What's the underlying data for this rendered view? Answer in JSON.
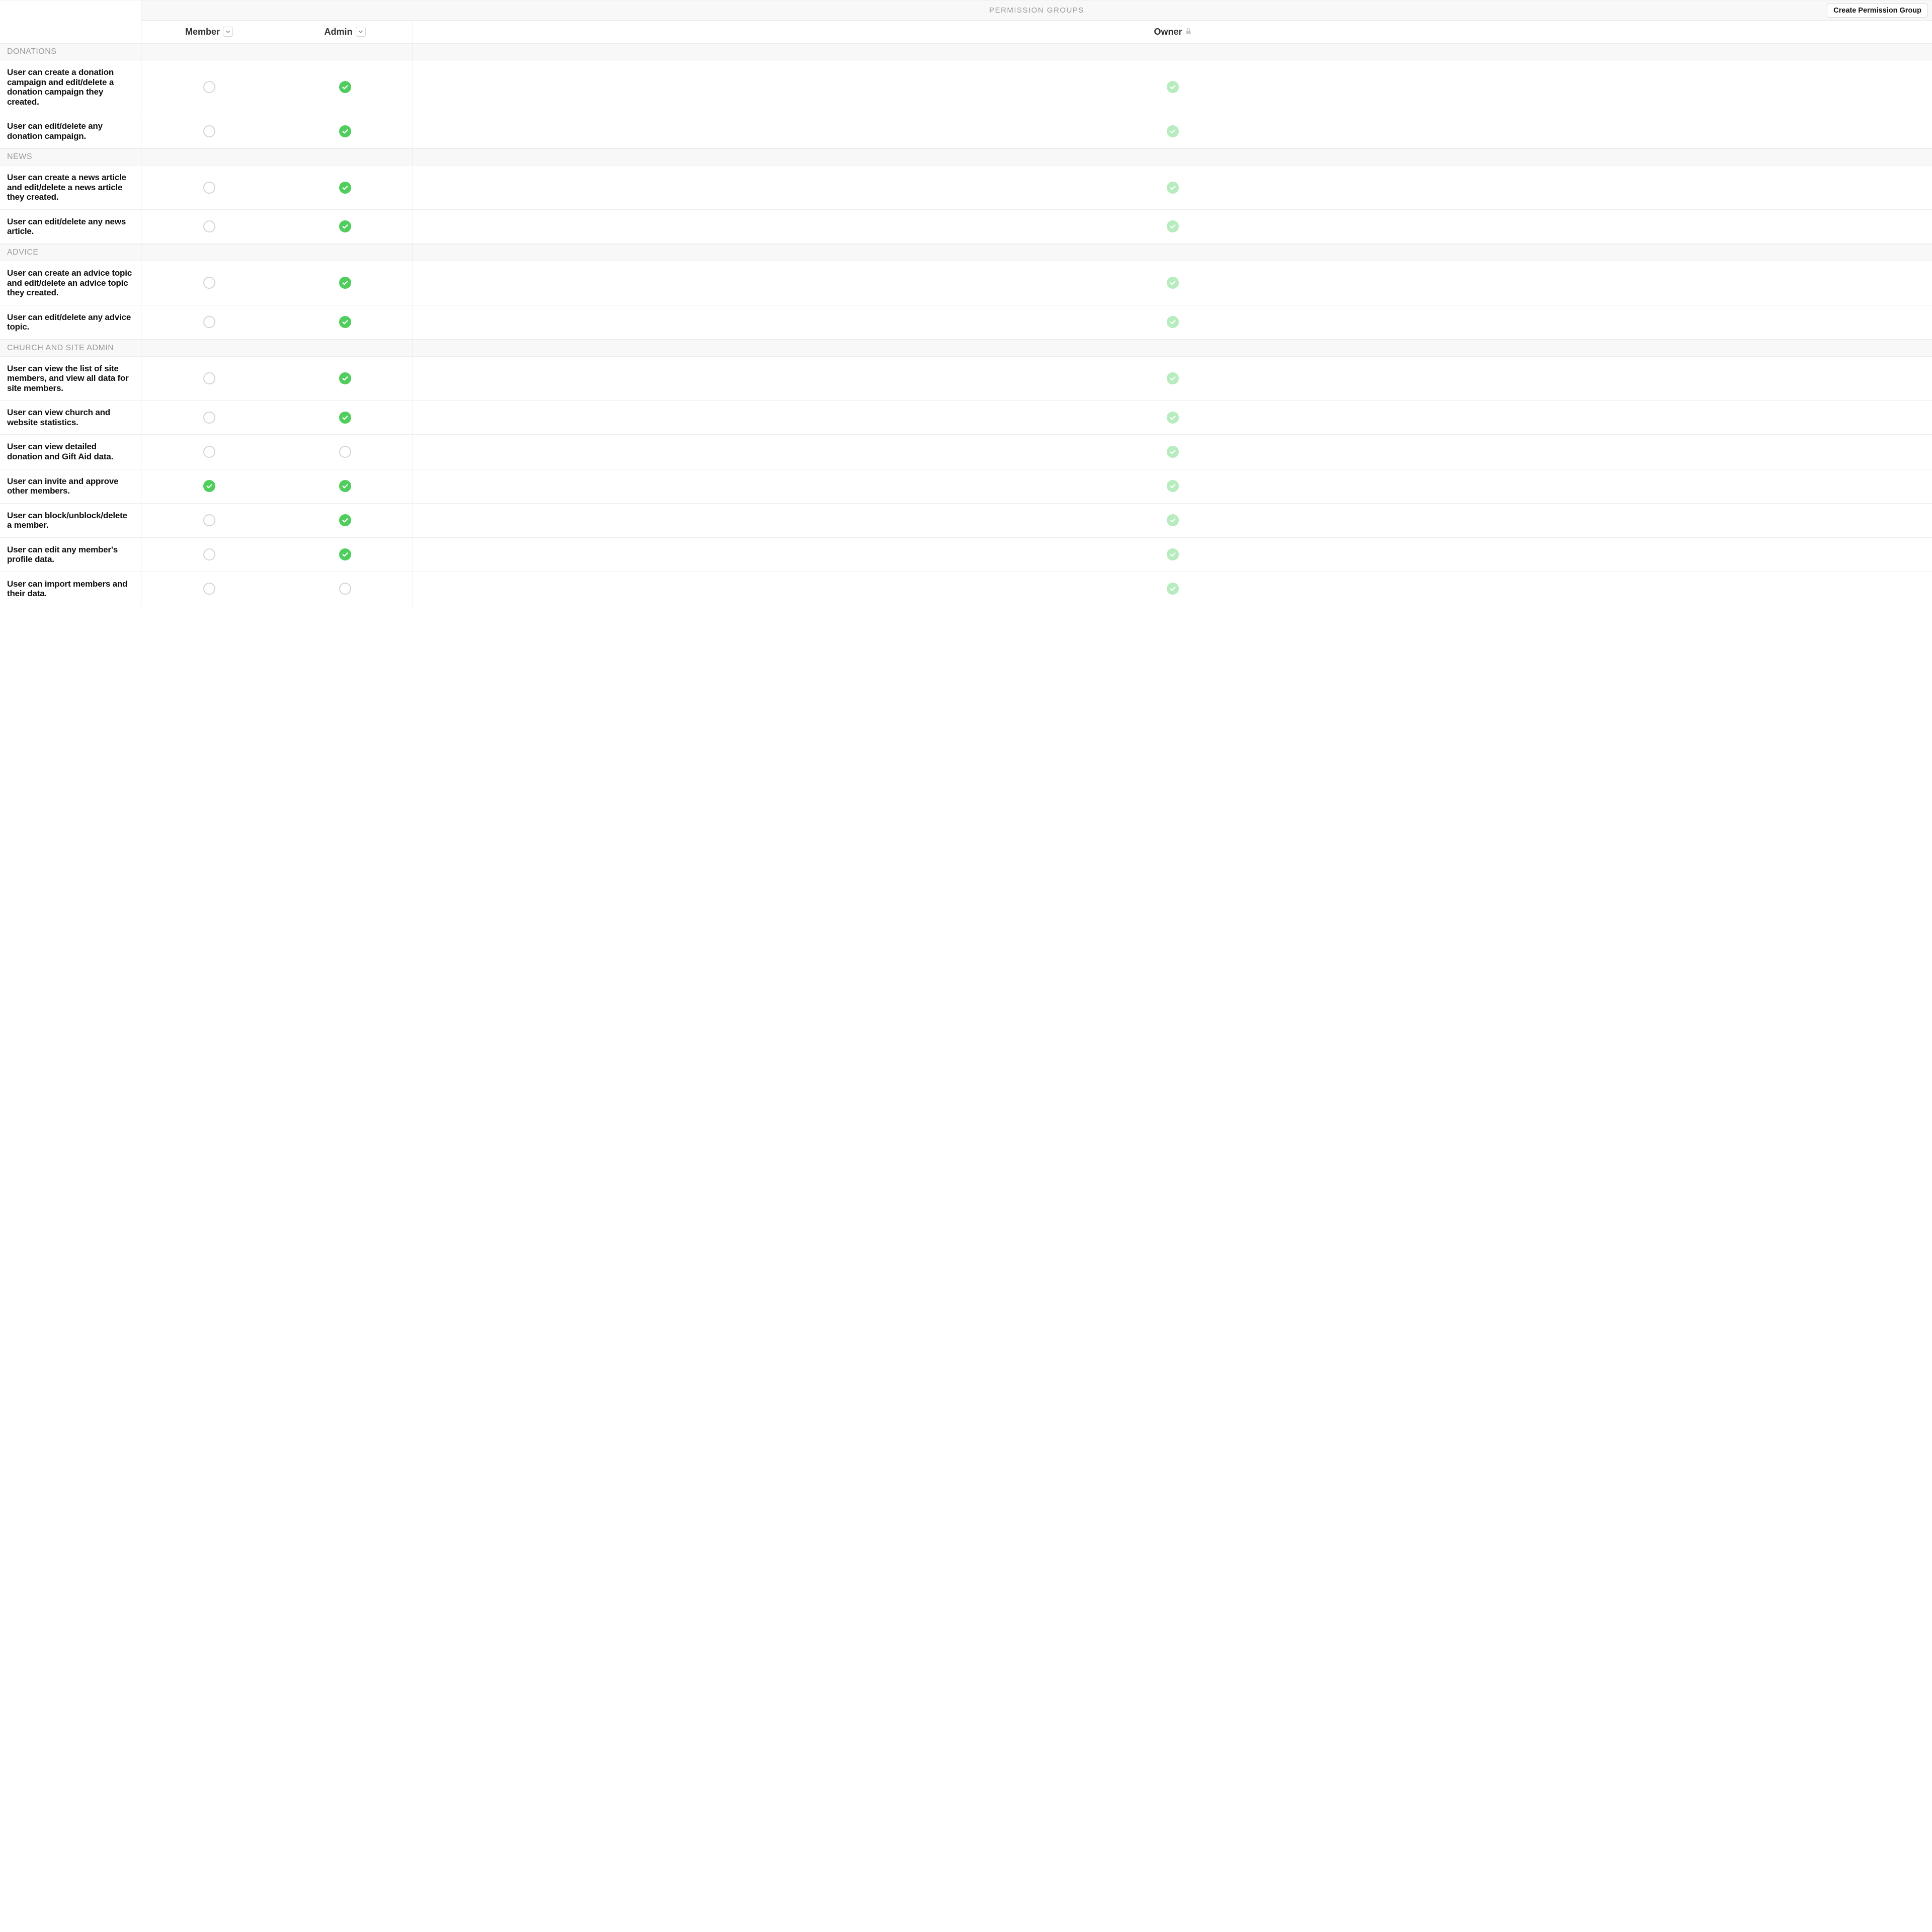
{
  "header": {
    "title": "PERMISSION GROUPS",
    "create_button": "Create Permission Group"
  },
  "columns": [
    {
      "label": "Member",
      "has_dropdown": true,
      "has_lock": false
    },
    {
      "label": "Admin",
      "has_dropdown": true,
      "has_lock": false
    },
    {
      "label": "Owner",
      "has_dropdown": false,
      "has_lock": true
    }
  ],
  "colors": {
    "checked": "#4fce5d",
    "locked": "#b7ecbe",
    "empty_border": "#d5d5d5",
    "section_bg": "#f8f8f8",
    "section_text": "#9a9a9a",
    "border": "#e9e9e9"
  },
  "sections": [
    {
      "title": "DONATIONS",
      "rows": [
        {
          "label": "User can create a donation campaign and edit/delete a donation campaign they created.",
          "cells": [
            "empty",
            "checked",
            "locked"
          ]
        },
        {
          "label": "User can edit/delete any donation campaign.",
          "cells": [
            "empty",
            "checked",
            "locked"
          ]
        }
      ]
    },
    {
      "title": "NEWS",
      "rows": [
        {
          "label": "User can create a news article and edit/delete a news article they created.",
          "cells": [
            "empty",
            "checked",
            "locked"
          ]
        },
        {
          "label": "User can edit/delete any news article.",
          "cells": [
            "empty",
            "checked",
            "locked"
          ]
        }
      ]
    },
    {
      "title": "ADVICE",
      "rows": [
        {
          "label": "User can create an advice topic and edit/delete an advice topic they created.",
          "cells": [
            "empty",
            "checked",
            "locked"
          ]
        },
        {
          "label": "User can edit/delete any advice topic.",
          "cells": [
            "empty",
            "checked",
            "locked"
          ]
        }
      ]
    },
    {
      "title": "CHURCH AND SITE ADMIN",
      "rows": [
        {
          "label": "User can view the list of site members, and view all data for site members.",
          "cells": [
            "empty",
            "checked",
            "locked"
          ]
        },
        {
          "label": "User can view church and website statistics.",
          "cells": [
            "empty",
            "checked",
            "locked"
          ]
        },
        {
          "label": "User can view detailed donation and Gift Aid data.",
          "cells": [
            "empty",
            "empty",
            "locked"
          ]
        },
        {
          "label": "User can invite and approve other members.",
          "cells": [
            "checked",
            "checked",
            "locked"
          ]
        },
        {
          "label": "User can block/unblock/delete a member.",
          "cells": [
            "empty",
            "checked",
            "locked"
          ]
        },
        {
          "label": "User can edit any member's profile data.",
          "cells": [
            "empty",
            "checked",
            "locked"
          ]
        },
        {
          "label": "User can import members and their data.",
          "cells": [
            "empty",
            "empty",
            "locked"
          ]
        }
      ]
    }
  ]
}
